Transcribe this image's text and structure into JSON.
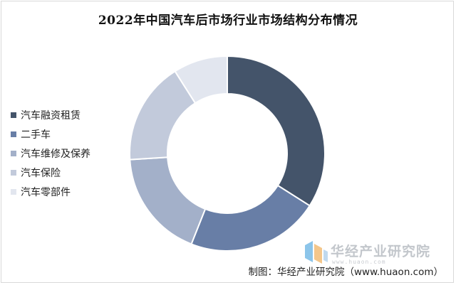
{
  "chart_data": {
    "type": "pie",
    "donut": true,
    "title": "2022年中国汽车后市场行业市场结构分布情况",
    "labels": [
      "汽车融资租赁",
      "二手车",
      "汽车维修及保养",
      "汽车保险",
      "汽车零部件"
    ],
    "values": [
      34,
      22,
      18,
      17,
      9
    ],
    "colors": [
      "#44546a",
      "#687ea6",
      "#a3b0c9",
      "#c2cadb",
      "#e2e6ef"
    ],
    "legend_position": "left"
  },
  "watermark": {
    "name": "华经产业研究院",
    "url": "www.huaon.com"
  },
  "source": "制图：华经产业研究院（www.huaon.com）"
}
